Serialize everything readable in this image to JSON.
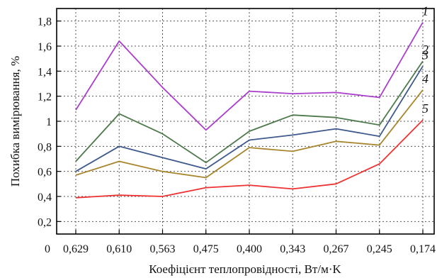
{
  "chart_data": {
    "type": "line",
    "xlabel": "Коефіцієнт теплопровідності, Вт/м·K",
    "ylabel": "Похибка вимірювання, %",
    "origin_label": "0",
    "categories": [
      "0,629",
      "0,610",
      "0,563",
      "0,475",
      "0,400",
      "0,343",
      "0,267",
      "0,245",
      "0,174"
    ],
    "ylim": [
      0.1,
      1.9
    ],
    "yticks": [
      0.2,
      0.4,
      0.6,
      0.8,
      1.0,
      1.2,
      1.4,
      1.6,
      1.8
    ],
    "ytick_labels": [
      "0,2",
      "0,4",
      "0,6",
      "0,8",
      "1",
      "1,2",
      "1,4",
      "1,6",
      "1,8"
    ],
    "grid": true,
    "grid_style": "dotted",
    "series": [
      {
        "name": "1",
        "color": "#aa3fcc",
        "values": [
          1.09,
          1.64,
          1.27,
          0.93,
          1.24,
          1.22,
          1.23,
          1.19,
          1.79
        ]
      },
      {
        "name": "2",
        "color": "#4e7a4c",
        "values": [
          0.68,
          1.06,
          0.9,
          0.67,
          0.92,
          1.05,
          1.03,
          0.97,
          1.48
        ]
      },
      {
        "name": "3",
        "color": "#3e5a8c",
        "values": [
          0.6,
          0.8,
          0.71,
          0.62,
          0.85,
          0.89,
          0.94,
          0.88,
          1.44
        ]
      },
      {
        "name": "4",
        "color": "#a8862e",
        "values": [
          0.57,
          0.68,
          0.6,
          0.55,
          0.79,
          0.76,
          0.84,
          0.81,
          1.25
        ]
      },
      {
        "name": "5",
        "color": "#ee3333",
        "values": [
          0.39,
          0.41,
          0.4,
          0.47,
          0.49,
          0.46,
          0.5,
          0.66,
          1.01
        ]
      }
    ]
  }
}
